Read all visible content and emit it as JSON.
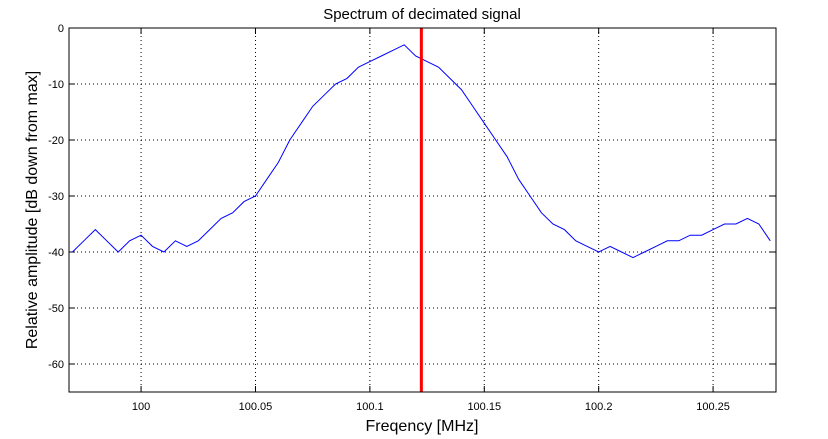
{
  "chart_data": {
    "type": "line",
    "title": "Spectrum of decimated signal",
    "xlabel": "Freqency [MHz]",
    "ylabel": "Relative amplitude [dB down from max]",
    "xlim": [
      99.9685,
      100.2775
    ],
    "ylim": [
      -65,
      0
    ],
    "xticks": [
      100,
      100.05,
      100.1,
      100.15,
      100.2,
      100.25
    ],
    "xtick_labels": [
      "100",
      "100.05",
      "100.1",
      "100.15",
      "100.2",
      "100.25"
    ],
    "yticks": [
      0,
      -10,
      -20,
      -30,
      -40,
      -50,
      -60
    ],
    "ytick_labels": [
      "0",
      "-10",
      "-20",
      "-30",
      "-40",
      "-50",
      "-60"
    ],
    "grid": true,
    "series": [
      {
        "color": "#0000ff",
        "x": [
          99.97,
          99.975,
          99.98,
          99.985,
          99.99,
          99.995,
          100.0,
          100.005,
          100.01,
          100.015,
          100.02,
          100.025,
          100.03,
          100.035,
          100.04,
          100.045,
          100.05,
          100.055,
          100.06,
          100.065,
          100.07,
          100.075,
          100.08,
          100.085,
          100.09,
          100.095,
          100.1,
          100.105,
          100.11,
          100.115,
          100.12,
          100.125,
          100.13,
          100.135,
          100.14,
          100.145,
          100.15,
          100.155,
          100.16,
          100.165,
          100.17,
          100.175,
          100.18,
          100.185,
          100.19,
          100.195,
          100.2,
          100.205,
          100.21,
          100.215,
          100.22,
          100.225,
          100.23,
          100.235,
          100.24,
          100.245,
          100.25,
          100.255,
          100.26,
          100.265,
          100.27,
          100.275
        ],
        "y": [
          -40,
          -38,
          -36,
          -38,
          -40,
          -38,
          -37,
          -39,
          -40,
          -38,
          -39,
          -38,
          -36,
          -34,
          -33,
          -31,
          -30,
          -27,
          -24,
          -20,
          -17,
          -14,
          -12,
          -10,
          -9,
          -7,
          -6,
          -5,
          -4,
          -3,
          -5,
          -6,
          -7,
          -9,
          -11,
          -14,
          -17,
          -20,
          -23,
          -27,
          -30,
          -33,
          -35,
          -36,
          -38,
          -39,
          -40,
          -39,
          -40,
          -41,
          -40,
          -39,
          -38,
          -38,
          -37,
          -37,
          -36,
          -35,
          -35,
          -34,
          -35,
          -38
        ]
      }
    ],
    "annotations": [
      {
        "type": "vertical-line",
        "x": 100.1225,
        "color": "#ff0000"
      }
    ]
  }
}
